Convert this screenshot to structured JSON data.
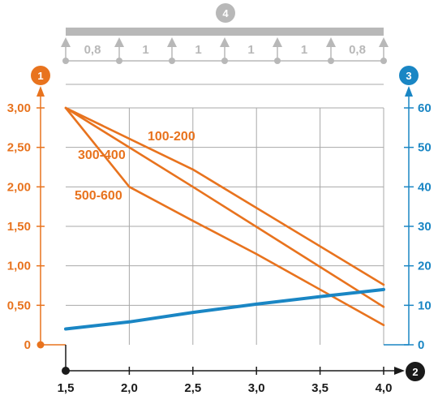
{
  "colors": {
    "load": "#e8731e",
    "deflection": "#1a86c4",
    "grid": "#a8a8a8",
    "beam": "#b8b8b8",
    "xaxis": "#1a1a1a"
  },
  "chart_data": {
    "type": "line",
    "title": "",
    "badges": {
      "left_axis": "1",
      "x_axis": "2",
      "right_axis": "3",
      "beam": "4"
    },
    "x": {
      "min": 1.5,
      "max": 4.0,
      "ticks": [
        "1,5",
        "2,0",
        "2,5",
        "3,0",
        "3,5",
        "4,0"
      ],
      "tick_values": [
        1.5,
        2.0,
        2.5,
        3.0,
        3.5,
        4.0
      ]
    },
    "y_left": {
      "min": 0,
      "max": 3.0,
      "ticks": [
        "0",
        "0,50",
        "1,00",
        "1,50",
        "2,00",
        "2,50",
        "3,00"
      ],
      "tick_values": [
        0,
        0.5,
        1.0,
        1.5,
        2.0,
        2.5,
        3.0
      ]
    },
    "y_right": {
      "min": 0,
      "max": 60,
      "ticks": [
        "0",
        "10",
        "20",
        "30",
        "40",
        "50",
        "60"
      ],
      "tick_values": [
        0,
        10,
        20,
        30,
        40,
        50,
        60
      ]
    },
    "grid": true,
    "span_layout": [
      "0,8",
      "1",
      "1",
      "1",
      "1",
      "0,8"
    ],
    "series": [
      {
        "name": "100-200",
        "axis": "left",
        "points": [
          [
            1.5,
            3.0
          ],
          [
            2.5,
            2.22
          ],
          [
            4.0,
            0.76
          ]
        ]
      },
      {
        "name": "300-400",
        "axis": "left",
        "points": [
          [
            1.5,
            3.0
          ],
          [
            2.5,
            2.0
          ],
          [
            4.0,
            0.48
          ]
        ]
      },
      {
        "name": "500-600",
        "axis": "left",
        "points": [
          [
            1.5,
            3.0
          ],
          [
            2.0,
            2.0
          ],
          [
            2.5,
            1.57
          ],
          [
            3.0,
            1.15
          ],
          [
            4.0,
            0.25
          ]
        ]
      },
      {
        "name": "",
        "axis": "right",
        "points": [
          [
            1.5,
            4.0
          ],
          [
            2.0,
            5.8
          ],
          [
            2.5,
            8.2
          ],
          [
            3.0,
            10.3
          ],
          [
            3.5,
            12.2
          ],
          [
            4.0,
            14.0
          ]
        ]
      }
    ]
  }
}
